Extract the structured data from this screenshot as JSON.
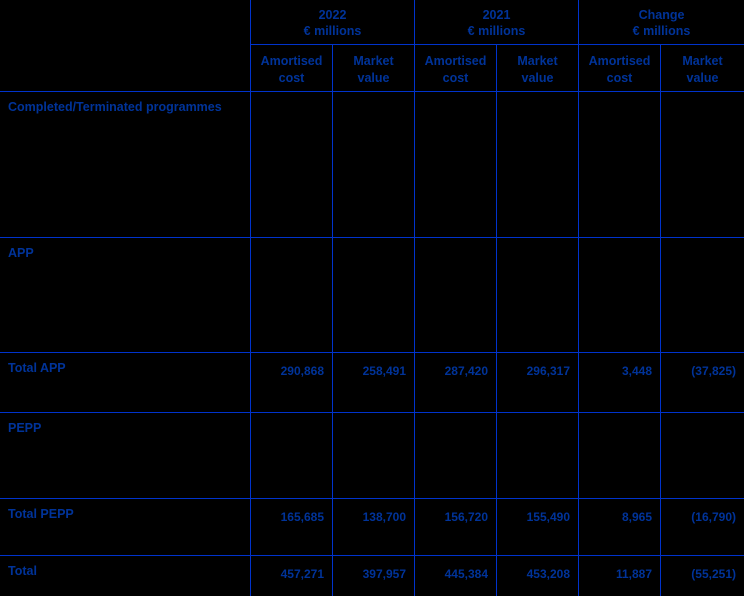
{
  "colors": {
    "background": "#000000",
    "text": "#003399",
    "border": "#0033cc"
  },
  "header": {
    "groups": [
      {
        "title": "2022",
        "unit": "€ millions"
      },
      {
        "title": "2021",
        "unit": "€ millions"
      },
      {
        "title": "Change",
        "unit": "€ millions"
      }
    ],
    "subcols": [
      "Amortised cost",
      "Market value",
      "Amortised cost",
      "Market value",
      "Amortised cost",
      "Market value"
    ]
  },
  "rows": [
    {
      "type": "section",
      "label": "Completed/Terminated programmes",
      "values": [
        "",
        "",
        "",
        "",
        "",
        ""
      ]
    },
    {
      "type": "section",
      "label": "APP",
      "values": [
        "",
        "",
        "",
        "",
        "",
        ""
      ]
    },
    {
      "type": "total",
      "label": "Total APP",
      "values": [
        "290,868",
        "258,491",
        "287,420",
        "296,317",
        "3,448",
        "(37,825)"
      ]
    },
    {
      "type": "section",
      "label": "PEPP",
      "values": [
        "",
        "",
        "",
        "",
        "",
        ""
      ]
    },
    {
      "type": "total",
      "label": "Total PEPP",
      "values": [
        "165,685",
        "138,700",
        "156,720",
        "155,490",
        "8,965",
        "(16,790)"
      ]
    },
    {
      "type": "total",
      "label": "Total",
      "values": [
        "457,271",
        "397,957",
        "445,384",
        "453,208",
        "11,887",
        "(55,251)"
      ]
    }
  ]
}
